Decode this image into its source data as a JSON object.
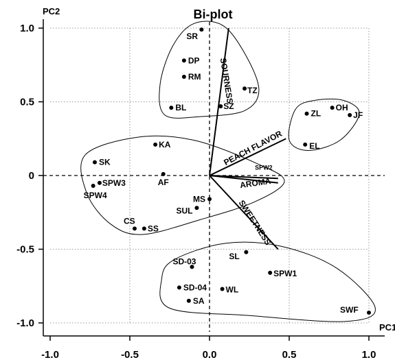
{
  "chart_data": {
    "type": "scatter",
    "title": "Bi-plot",
    "xlabel": "PC1",
    "ylabel": "PC2",
    "xlim": [
      -1.1,
      1.05
    ],
    "ylim": [
      -1.05,
      1.05
    ],
    "xticks": [
      "-1.0",
      "-0.5",
      "0.0",
      "0.5",
      "1.0"
    ],
    "yticks": [
      "1.0",
      "0.5",
      "0",
      "-0.5",
      "-1.0"
    ],
    "grid": true,
    "points": [
      {
        "label": "SR",
        "x": -0.05,
        "y": 0.99
      },
      {
        "label": "DP",
        "x": -0.16,
        "y": 0.78
      },
      {
        "label": "RM",
        "x": -0.16,
        "y": 0.67
      },
      {
        "label": "TZ",
        "x": 0.22,
        "y": 0.59
      },
      {
        "label": "BL",
        "x": -0.24,
        "y": 0.46
      },
      {
        "label": "SZ",
        "x": 0.07,
        "y": 0.47
      },
      {
        "label": "ZL",
        "x": 0.61,
        "y": 0.42
      },
      {
        "label": "OH",
        "x": 0.77,
        "y": 0.46
      },
      {
        "label": "JF",
        "x": 0.88,
        "y": 0.41
      },
      {
        "label": "EL",
        "x": 0.6,
        "y": 0.21
      },
      {
        "label": "KA",
        "x": -0.34,
        "y": 0.21
      },
      {
        "label": "SK",
        "x": -0.72,
        "y": 0.09
      },
      {
        "label": "AF",
        "x": -0.29,
        "y": 0.01
      },
      {
        "label": "SPW3",
        "x": -0.69,
        "y": -0.05
      },
      {
        "label": "SPW4",
        "x": -0.73,
        "y": -0.07
      },
      {
        "label": "MS",
        "x": 0.0,
        "y": -0.16
      },
      {
        "label": "SUL",
        "x": -0.08,
        "y": -0.22
      },
      {
        "label": "CS",
        "x": -0.47,
        "y": -0.36
      },
      {
        "label": "SS",
        "x": -0.41,
        "y": -0.36
      },
      {
        "label": "SL",
        "x": 0.23,
        "y": -0.52
      },
      {
        "label": "SD-03",
        "x": -0.11,
        "y": -0.62
      },
      {
        "label": "SPW1",
        "x": 0.38,
        "y": -0.66
      },
      {
        "label": "SD-04",
        "x": -0.19,
        "y": -0.76
      },
      {
        "label": "WL",
        "x": 0.08,
        "y": -0.77
      },
      {
        "label": "SA",
        "x": -0.13,
        "y": -0.85
      },
      {
        "label": "SWF",
        "x": 1.0,
        "y": -0.93
      }
    ],
    "vectors": [
      {
        "label": "SOURNESS",
        "x": 0.12,
        "y": 1.0
      },
      {
        "label": "PEACH FLAVOR",
        "x": 0.48,
        "y": 0.25
      },
      {
        "label": "SPW2",
        "x": 0.43,
        "y": -0.02
      },
      {
        "label": "AROMA",
        "x": 0.43,
        "y": -0.05
      },
      {
        "label": "SWEETNESS",
        "x": 0.43,
        "y": -0.5
      }
    ],
    "groups": [
      {
        "name": "group-top",
        "members": [
          "SR",
          "DP",
          "RM",
          "TZ",
          "BL",
          "SZ"
        ]
      },
      {
        "name": "group-right",
        "members": [
          "ZL",
          "OH",
          "JF",
          "EL"
        ]
      },
      {
        "name": "group-middle",
        "members": [
          "KA",
          "SK",
          "AF",
          "SPW3",
          "SPW4",
          "MS",
          "SUL",
          "CS",
          "SS",
          "SPW2"
        ]
      },
      {
        "name": "group-bottom",
        "members": [
          "SL",
          "SD-03",
          "SPW1",
          "SD-04",
          "WL",
          "SA",
          "SWF"
        ]
      }
    ]
  }
}
